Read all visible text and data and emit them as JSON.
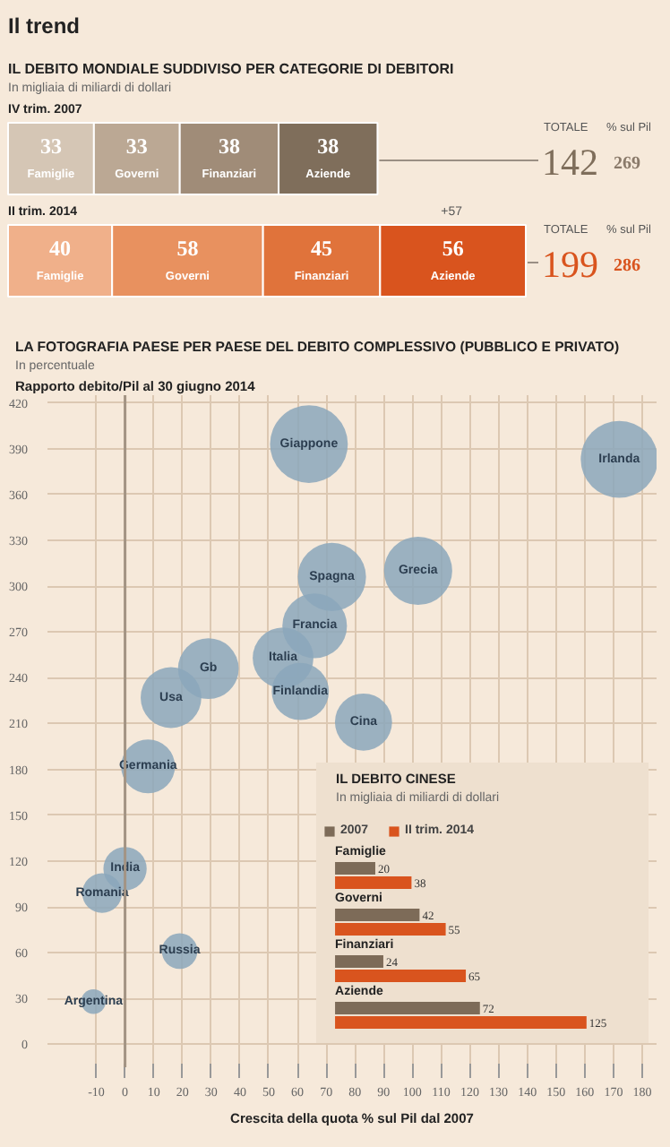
{
  "chart_data": [
    {
      "type": "bar",
      "orientation": "horizontal",
      "stacked": true,
      "title": "IL DEBITO MONDIALE SUDDIVISO PER CATEGORIE DI DEBITORI",
      "subtitle": "In migliaia di miliardi di dollari",
      "categories": [
        "IV trim. 2007",
        "II trim. 2014"
      ],
      "series": [
        {
          "name": "Famiglie",
          "colors": [
            "#d5c6b5",
            "#f0b08a"
          ],
          "values": [
            33,
            40
          ]
        },
        {
          "name": "Governi",
          "colors": [
            "#bba894",
            "#e8915f"
          ],
          "values": [
            33,
            58
          ]
        },
        {
          "name": "Finanziari",
          "colors": [
            "#a08c78",
            "#e0733b"
          ],
          "values": [
            38,
            45
          ]
        },
        {
          "name": "Aziende",
          "colors": [
            "#7f6e5b",
            "#d9541e"
          ],
          "values": [
            38,
            56
          ]
        }
      ],
      "data_labels": true,
      "annotations": [
        "Il trend",
        "TOTALE",
        "% sul Pil",
        "142",
        "269",
        "TOTALE",
        "% sul Pil",
        "199",
        "286",
        "+57"
      ]
    },
    {
      "type": "bubble",
      "title": "LA FOTOGRAFIA PAESE PER PAESE DEL DEBITO COMPLESSIVO (PUBBLICO E PRIVATO)",
      "subtitle": "In percentuale",
      "ylabel": "Rapporto debito/Pil al 30 giugno 2014",
      "xlabel": "Crescita della quota % sul Pil dal 2007",
      "xlim": [
        -27,
        185
      ],
      "ylim": [
        -15,
        425
      ],
      "xticks": [
        -10,
        0,
        10,
        20,
        30,
        40,
        50,
        60,
        70,
        80,
        90,
        100,
        110,
        120,
        130,
        140,
        150,
        160,
        170,
        180
      ],
      "yticks": [
        0,
        30,
        60,
        90,
        120,
        150,
        180,
        210,
        240,
        270,
        300,
        330,
        360,
        390,
        420
      ],
      "grid": true,
      "ref_lines": [
        {
          "axis": "x",
          "value": 0,
          "color": "#a39484"
        }
      ],
      "series": [
        {
          "name": "Giappone",
          "color": "#8ba7bb",
          "x": [
            64
          ],
          "values": [
            393
          ],
          "sizes": [
            1
          ]
        },
        {
          "name": "Irlanda",
          "color": "#8ba7bb",
          "x": [
            172
          ],
          "values": [
            383
          ],
          "sizes": [
            0.98
          ]
        },
        {
          "name": "Spagna",
          "color": "#8ba7bb",
          "x": [
            72
          ],
          "values": [
            306
          ],
          "sizes": [
            0.77
          ]
        },
        {
          "name": "Grecia",
          "color": "#8ba7bb",
          "x": [
            102
          ],
          "values": [
            310
          ],
          "sizes": [
            0.77
          ]
        },
        {
          "name": "Francia",
          "color": "#8ba7bb",
          "x": [
            66
          ],
          "values": [
            274
          ],
          "sizes": [
            0.69
          ]
        },
        {
          "name": "Italia",
          "color": "#8ba7bb",
          "x": [
            55
          ],
          "values": [
            253
          ],
          "sizes": [
            0.61
          ]
        },
        {
          "name": "Finlandia",
          "color": "#8ba7bb",
          "x": [
            61
          ],
          "values": [
            231
          ],
          "sizes": [
            0.54
          ]
        },
        {
          "name": "Gb",
          "color": "#8ba7bb",
          "x": [
            29
          ],
          "values": [
            246
          ],
          "sizes": [
            0.61
          ]
        },
        {
          "name": "Usa",
          "color": "#8ba7bb",
          "x": [
            16
          ],
          "values": [
            227
          ],
          "sizes": [
            0.61
          ]
        },
        {
          "name": "Cina",
          "color": "#8ba7bb",
          "x": [
            83
          ],
          "values": [
            211
          ],
          "sizes": [
            0.54
          ]
        },
        {
          "name": "Germania",
          "color": "#8ba7bb",
          "x": [
            8
          ],
          "values": [
            182
          ],
          "sizes": [
            0.48
          ]
        },
        {
          "name": "India",
          "color": "#8ba7bb",
          "x": [
            0
          ],
          "values": [
            115
          ],
          "sizes": [
            0.31
          ]
        },
        {
          "name": "Romania",
          "color": "#8ba7bb",
          "x": [
            -8
          ],
          "values": [
            99
          ],
          "sizes": [
            0.26
          ]
        },
        {
          "name": "Russia",
          "color": "#8ba7bb",
          "x": [
            19
          ],
          "values": [
            61
          ],
          "sizes": [
            0.21
          ]
        },
        {
          "name": "Argentina",
          "color": "#8ba7bb",
          "x": [
            -11
          ],
          "values": [
            28
          ],
          "sizes": [
            0.1
          ]
        }
      ]
    },
    {
      "type": "bar",
      "orientation": "horizontal",
      "title": "IL DEBITO CINESE",
      "subtitle": "In migliaia di miliardi di dollari",
      "categories": [
        "Famiglie",
        "Governi",
        "Finanziari",
        "Aziende"
      ],
      "series": [
        {
          "name": "2007",
          "color": "#7d6b58",
          "values": [
            20,
            42,
            24,
            72
          ]
        },
        {
          "name": "II trim. 2014",
          "color": "#d9541e",
          "values": [
            38,
            55,
            65,
            125
          ]
        }
      ],
      "data_labels": true,
      "legend": "top left"
    }
  ]
}
